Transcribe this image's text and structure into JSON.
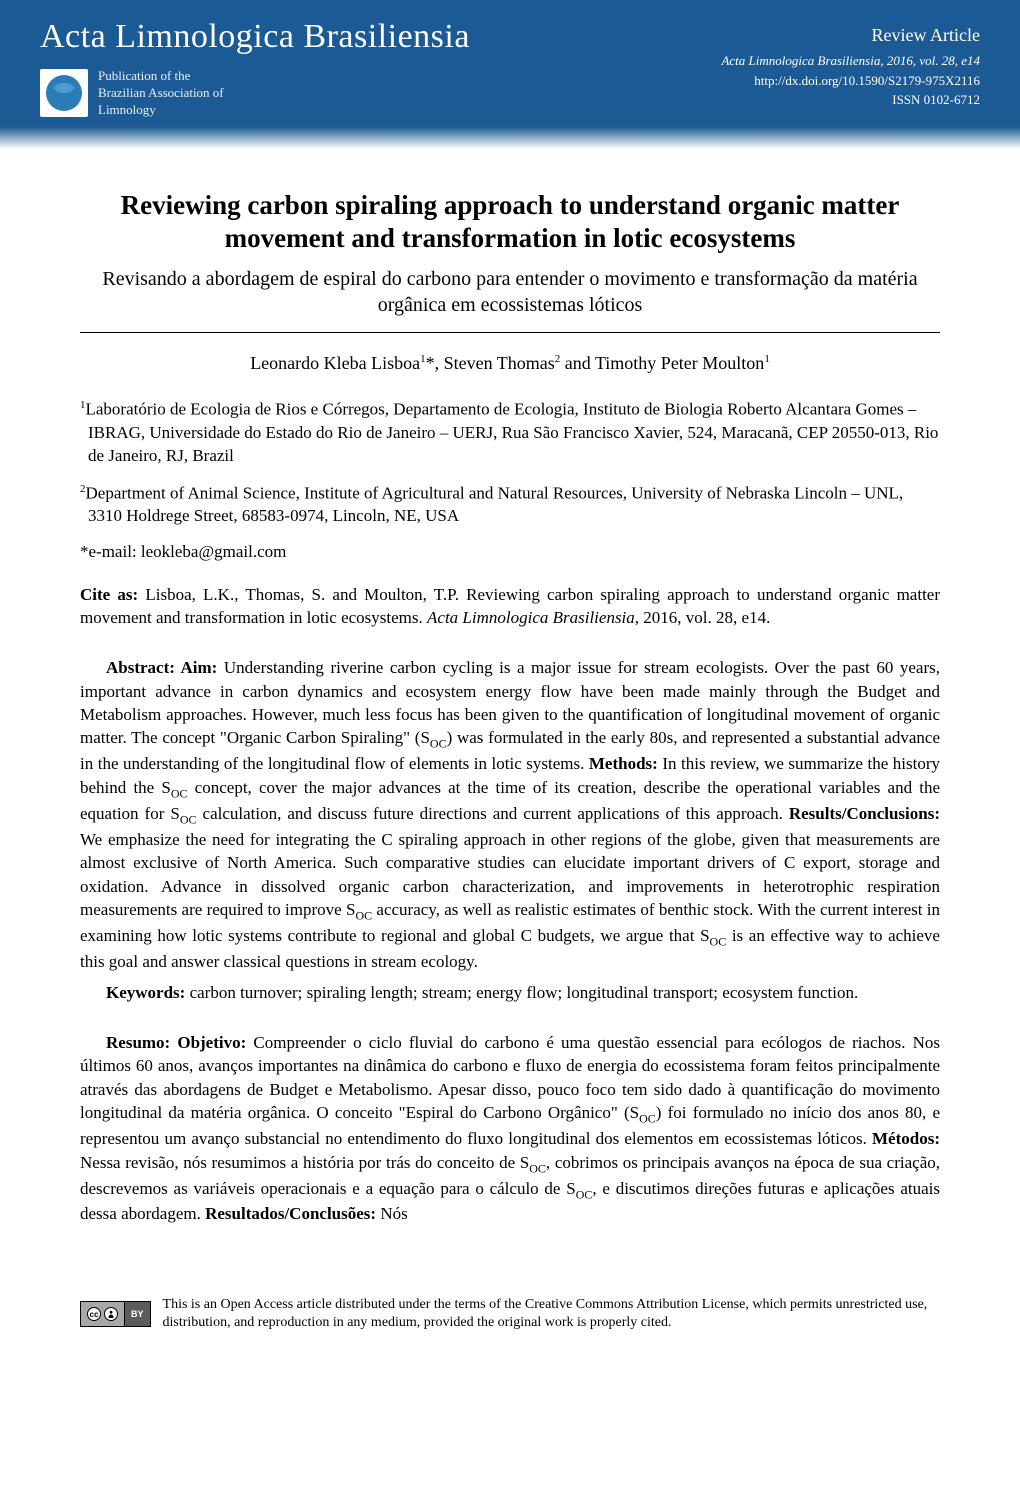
{
  "header": {
    "journal_name": "Acta Limnologica Brasiliensia",
    "publication_line1": "Publication of the",
    "publication_line2": "Brazilian Association of",
    "publication_line3": "Limnology",
    "article_type": "Review Article",
    "citation": "Acta Limnologica Brasiliensia, 2016, vol. 28, e14",
    "doi": "http://dx.doi.org/10.1590/S2179-975X2116",
    "issn": "ISSN 0102-6712"
  },
  "title": {
    "en": "Reviewing carbon spiraling approach to understand organic matter movement and transformation in lotic ecosystems",
    "pt": "Revisando a abordagem de espiral do carbono para entender o movimento e transformação da matéria orgânica em ecossistemas lóticos"
  },
  "authors_html": "Leonardo Kleba Lisboa<sup>1</sup>*, Steven Thomas<sup>2</sup> and Timothy Peter Moulton<sup>1</sup>",
  "affiliations": [
    "<sup>1</sup>Laboratório de Ecologia de Rios e Córregos, Departamento de Ecologia, Instituto de Biologia Roberto Alcantara Gomes – IBRAG, Universidade do Estado do Rio de Janeiro – UERJ, Rua São Francisco Xavier, 524, Maracanã, CEP 20550-013, Rio de Janeiro, RJ, Brazil",
    "<sup>2</sup>Department of Animal Science, Institute of Agricultural and Natural Resources, University of Nebraska Lincoln – UNL, 3310 Holdrege Street, 68583-0974, Lincoln, NE, USA"
  ],
  "email": "*e-mail: leokleba@gmail.com",
  "cite_as_html": "<span class=\"bold\">Cite as:</span> Lisboa, L.K., Thomas, S. and Moulton, T.P. Reviewing carbon spiraling approach to understand organic matter movement and transformation in lotic ecosystems. <span class=\"italic\">Acta Limnologica Brasiliensia</span>, 2016, vol. 28, e14.",
  "abstract_html": "<span class=\"bold\">Abstract: Aim:</span> Understanding riverine carbon cycling is a major issue for stream ecologists. Over the past 60 years, important advance in carbon dynamics and ecosystem energy flow have been made mainly through the Budget and Metabolism approaches. However, much less focus has been given to the quantification of longitudinal movement of organic matter. The concept \"Organic Carbon Spiraling\" (S<sub>OC</sub>) was formulated in the early 80s, and represented a substantial advance in the understanding of the longitudinal flow of elements in lotic systems. <span class=\"bold\">Methods:</span> In this review, we summarize the history behind the S<sub>OC</sub> concept, cover the major advances at the time of its creation, describe the operational variables and the equation for S<sub>OC</sub> calculation, and discuss future directions and current applications of this approach. <span class=\"bold\">Results/Conclusions:</span> We emphasize the need for integrating the C spiraling approach in other regions of the globe, given that measurements are almost exclusive of North America. Such comparative studies can elucidate important drivers of C export, storage and oxidation. Advance in dissolved organic carbon characterization, and improvements in heterotrophic respiration measurements are required to improve S<sub>OC</sub> accuracy, as well as realistic estimates of benthic stock. With the current interest in examining how lotic systems contribute to regional and global C budgets, we argue that S<sub>OC</sub> is an effective way to achieve this goal and answer classical questions in stream ecology.",
  "keywords_html": "<span class=\"bold\">Keywords:</span> carbon turnover; spiraling length; stream; energy flow; longitudinal transport; ecosystem function.",
  "resumo_html": "<span class=\"bold\">Resumo: Objetivo:</span> Compreender o ciclo fluvial do carbono é uma questão essencial para ecólogos de riachos. Nos últimos 60 anos, avanços importantes na dinâmica do carbono e fluxo de energia do ecossistema foram feitos principalmente através das abordagens de Budget e Metabolismo. Apesar disso, pouco foco tem sido dado à quantificação do movimento longitudinal da matéria orgânica. O conceito \"Espiral do Carbono Orgânico\" (S<sub>OC</sub>) foi formulado no início dos anos 80, e representou um avanço substancial no entendimento do fluxo longitudinal dos elementos em ecossistemas lóticos. <span class=\"bold\">Métodos:</span> Nessa revisão, nós resumimos a história por trás do conceito de S<sub>OC</sub>, cobrimos os principais avanços na época de sua criação, descrevemos as variáveis operacionais e a equação para o cálculo de S<sub>OC</sub>, e discutimos direções futuras e aplicações atuais dessa abordagem. <span class=\"bold\">Resultados/Conclusões:</span> Nós",
  "footer": {
    "cc_label": "cc",
    "by_label": "BY",
    "license_text": "This is an Open Access article distributed under the terms of the Creative Commons Attribution License, which permits unrestricted use, distribution, and reproduction in any medium, provided the original work is properly cited."
  },
  "colors": {
    "header_bg": "#1b5a94",
    "header_text": "#ffffff",
    "body_text": "#000000",
    "page_bg": "#ffffff"
  }
}
